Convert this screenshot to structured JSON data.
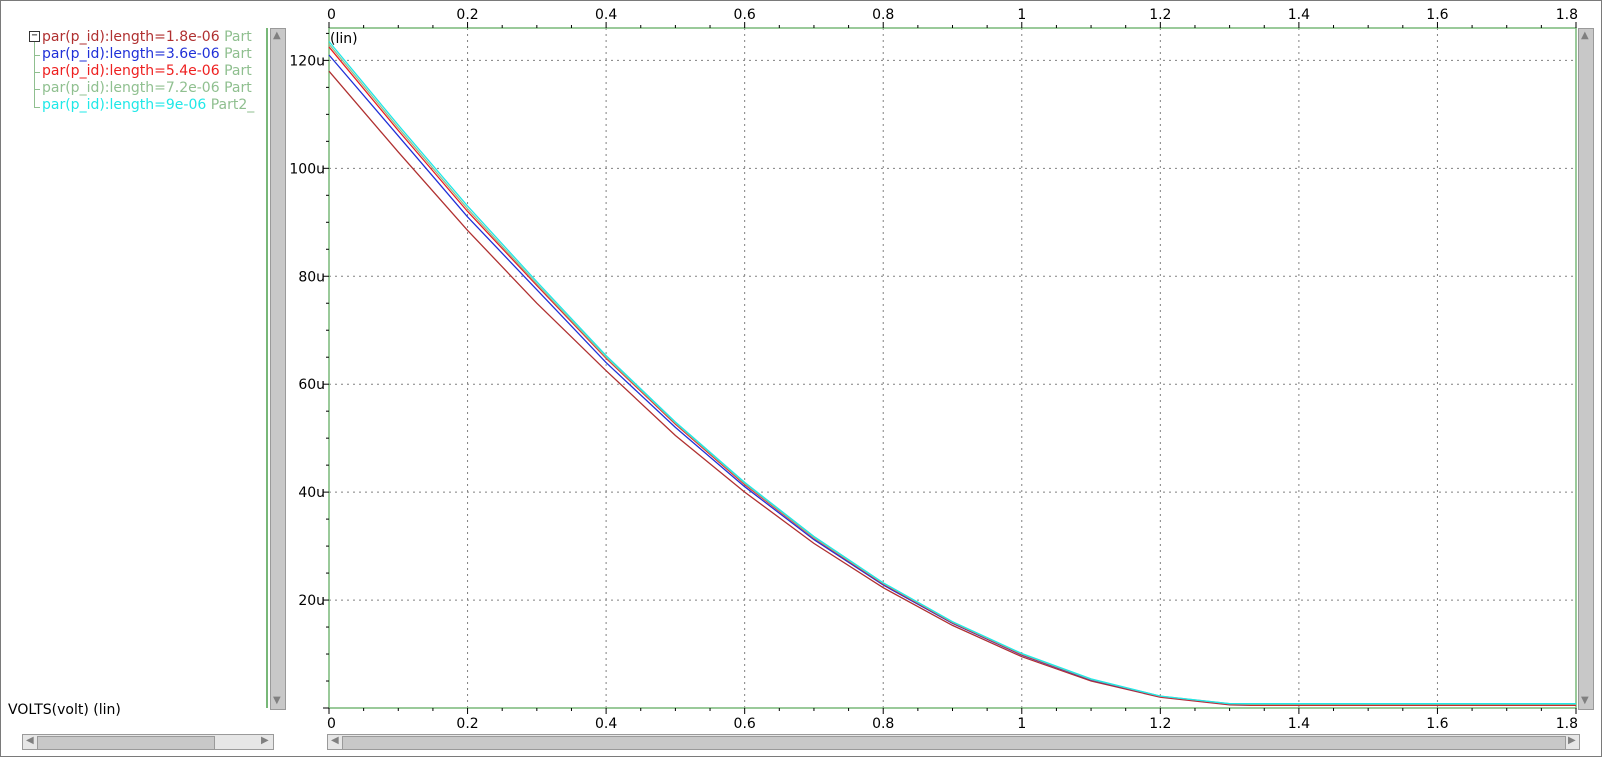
{
  "colors": {
    "grid": "#808080",
    "plot_border": "#78b878",
    "scrollbar": "#c8c8c8",
    "part_label": "#8fbf8f"
  },
  "legend": {
    "items": [
      {
        "label": "par(p_id):length=1.8e-06",
        "part": "Part",
        "color": "#b03030"
      },
      {
        "label": "par(p_id):length=3.6e-06",
        "part": "Part",
        "color": "#2030d8"
      },
      {
        "label": "par(p_id):length=5.4e-06",
        "part": "Part",
        "color": "#ee2020"
      },
      {
        "label": "par(p_id):length=7.2e-06",
        "part": "Part",
        "color": "#90c090"
      },
      {
        "label": "par(p_id):length=9e-06",
        "part": "Part2_",
        "color": "#20e8e8"
      }
    ]
  },
  "chart_data": {
    "type": "line",
    "y_scale_label": "(lin)",
    "xlabel": "VOLTS(volt) (lin)",
    "xlim": [
      0,
      1.8
    ],
    "ylim": [
      0,
      126
    ],
    "x_ticks": [
      "0",
      "0.2",
      "0.4",
      "0.6",
      "0.8",
      "1",
      "1.2",
      "1.4",
      "1.6",
      "1.8"
    ],
    "x_tick_values": [
      0,
      0.2,
      0.4,
      0.6,
      0.8,
      1.0,
      1.2,
      1.4,
      1.6,
      1.8
    ],
    "y_ticks": [
      "20u",
      "40u",
      "60u",
      "80u",
      "100u",
      "120u"
    ],
    "y_tick_values": [
      20,
      40,
      60,
      80,
      100,
      120
    ],
    "grid": true,
    "legend_position": "left panel",
    "series": [
      {
        "name": "par(p_id):length=1.8e-06",
        "color": "#b03030",
        "x": [
          0,
          0.1,
          0.2,
          0.3,
          0.4,
          0.5,
          0.6,
          0.7,
          0.8,
          0.9,
          1.0,
          1.1,
          1.2,
          1.3,
          1.33,
          1.4,
          1.6,
          1.8
        ],
        "y": [
          118,
          103,
          88.5,
          75,
          62.5,
          50.5,
          40,
          30.5,
          22.3,
          15.3,
          9.5,
          5,
          2,
          0.6,
          0.5,
          0.5,
          0.5,
          0.5
        ]
      },
      {
        "name": "par(p_id):length=3.6e-06",
        "color": "#2030d8",
        "x": [
          0,
          0.1,
          0.2,
          0.3,
          0.4,
          0.5,
          0.6,
          0.7,
          0.8,
          0.9,
          1.0,
          1.1,
          1.2,
          1.3,
          1.33,
          1.4,
          1.6,
          1.8
        ],
        "y": [
          121,
          106,
          91,
          77.5,
          64,
          52,
          41,
          31.2,
          22.8,
          15.7,
          9.8,
          5.2,
          2.1,
          0.7,
          0.6,
          0.6,
          0.6,
          0.6
        ]
      },
      {
        "name": "par(p_id):length=5.4e-06",
        "color": "#ee2020",
        "x": [
          0,
          0.1,
          0.2,
          0.3,
          0.4,
          0.5,
          0.6,
          0.7,
          0.8,
          0.9,
          1.0,
          1.1,
          1.2,
          1.3,
          1.33,
          1.4,
          1.6,
          1.8
        ],
        "y": [
          122.5,
          107,
          92,
          78.3,
          64.8,
          52.6,
          41.4,
          31.5,
          23,
          15.8,
          9.9,
          5.3,
          2.1,
          0.7,
          0.6,
          0.6,
          0.6,
          0.6
        ]
      },
      {
        "name": "par(p_id):length=7.2e-06",
        "color": "#90c090",
        "x": [
          0,
          0.1,
          0.2,
          0.3,
          0.4,
          0.5,
          0.6,
          0.7,
          0.8,
          0.9,
          1.0,
          1.1,
          1.2,
          1.3,
          1.33,
          1.4,
          1.6,
          1.8
        ],
        "y": [
          123,
          107.5,
          92.5,
          78.6,
          65,
          52.8,
          41.6,
          31.6,
          23.1,
          15.9,
          10,
          5.3,
          2.2,
          0.8,
          0.7,
          0.7,
          0.7,
          0.7
        ]
      },
      {
        "name": "par(p_id):length=9e-06",
        "color": "#20e8e8",
        "x": [
          0,
          0.1,
          0.2,
          0.3,
          0.4,
          0.5,
          0.6,
          0.7,
          0.8,
          0.9,
          1.0,
          1.1,
          1.2,
          1.3,
          1.33,
          1.4,
          1.6,
          1.8
        ],
        "y": [
          123.5,
          108,
          93,
          79,
          65.3,
          53,
          41.8,
          31.8,
          23.2,
          16,
          10.1,
          5.4,
          2.2,
          0.8,
          0.8,
          0.8,
          0.8,
          0.8
        ]
      }
    ]
  }
}
